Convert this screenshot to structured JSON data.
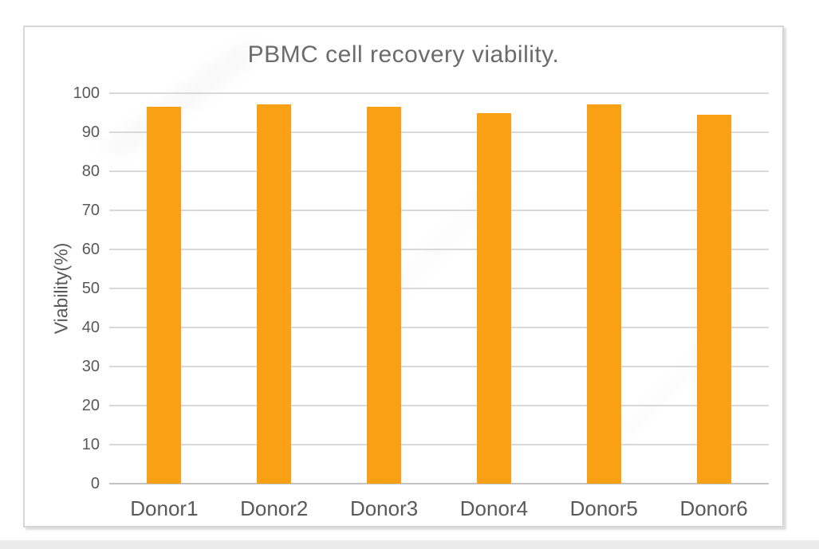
{
  "chart_data": {
    "type": "bar",
    "title": "PBMC cell recovery viability.",
    "ylabel": "Viability(%)",
    "xlabel": "",
    "categories": [
      "Donor1",
      "Donor2",
      "Donor3",
      "Donor4",
      "Donor5",
      "Donor6"
    ],
    "values": [
      96.5,
      97.2,
      96.5,
      94.8,
      97.2,
      94.4
    ],
    "ylim": [
      0,
      100
    ],
    "yticks": [
      0,
      10,
      20,
      30,
      40,
      50,
      60,
      70,
      80,
      90,
      100
    ],
    "grid": true,
    "legend": false,
    "bar_color": "#FAA014",
    "gridline_color": "#d9d9d9",
    "zero_line_color": "#c3c3c3",
    "tick_label_color": "#595959",
    "category_label_color": "#595959",
    "title_color": "#6b6b6b",
    "frame_border_color": "#d6d6d6"
  }
}
